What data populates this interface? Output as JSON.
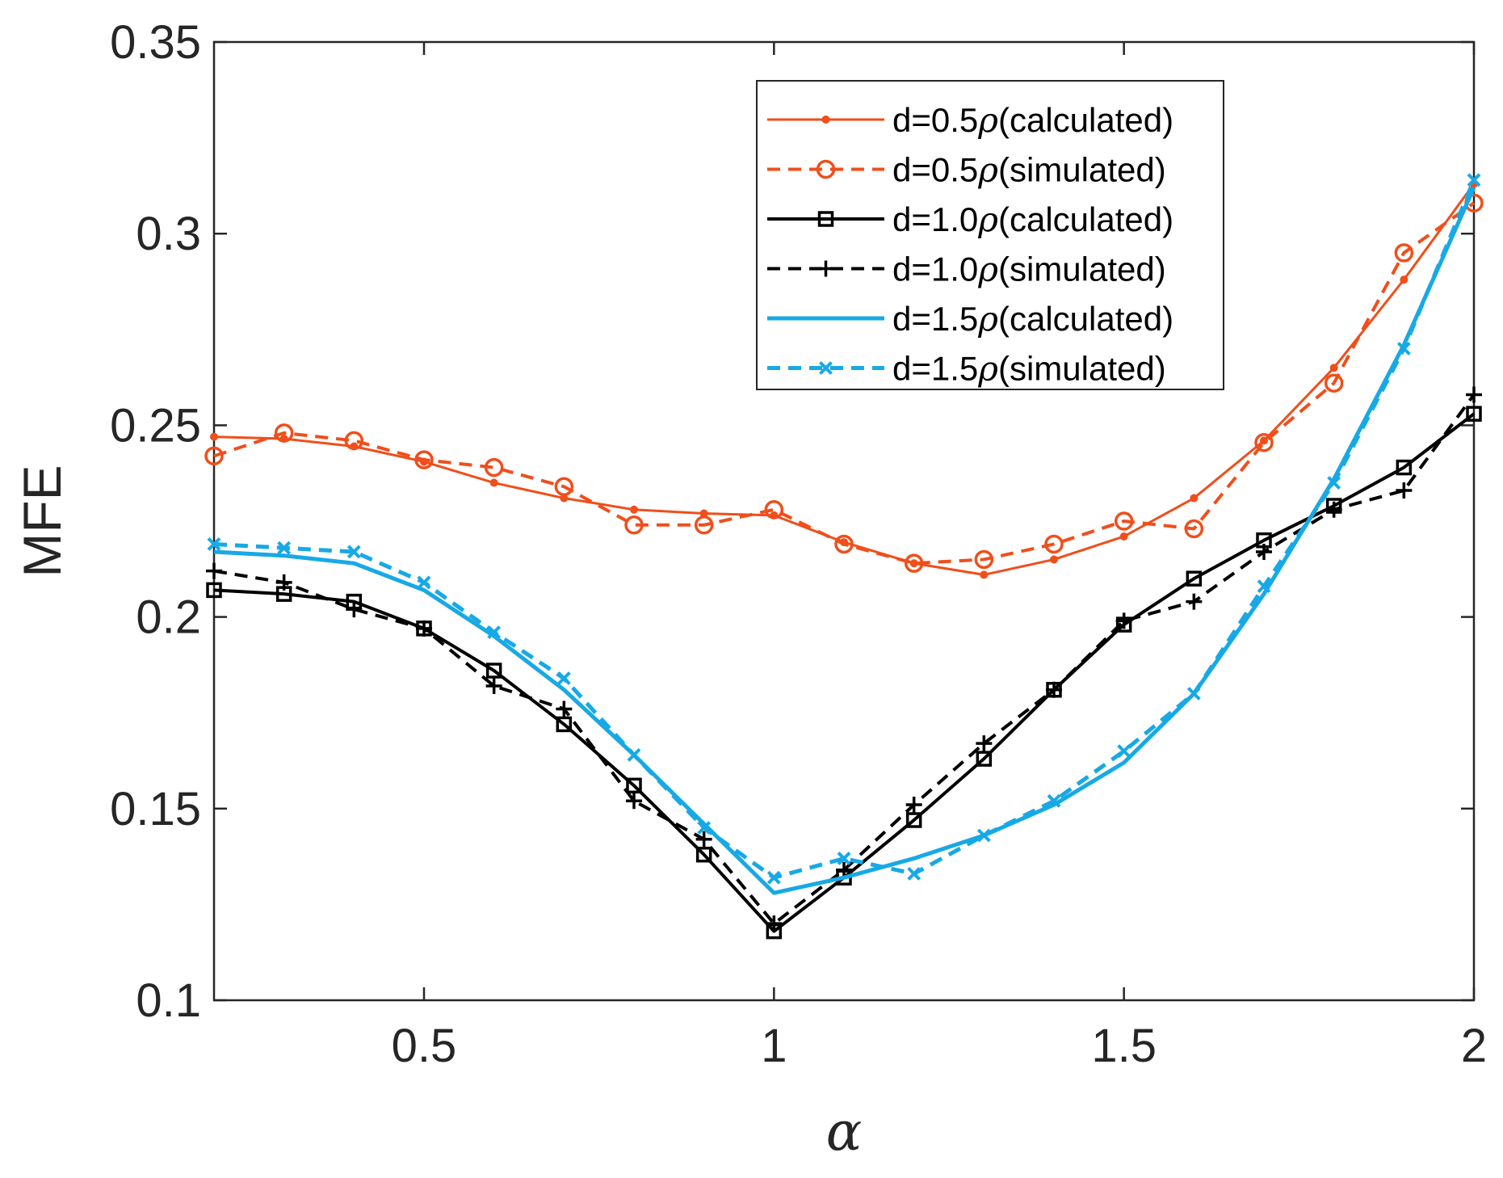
{
  "chart_data": {
    "type": "line",
    "title": "",
    "xlabel": "α",
    "ylabel": "MFE",
    "xlim": [
      0.2,
      2.0
    ],
    "ylim": [
      0.1,
      0.35
    ],
    "grid": false,
    "legend_position": "top-right",
    "x_ticks": [
      0.5,
      1.0,
      1.5,
      2.0
    ],
    "x_tick_labels": [
      "0.5",
      "1",
      "1.5",
      "2"
    ],
    "y_ticks": [
      0.1,
      0.15,
      0.2,
      0.25,
      0.3,
      0.35
    ],
    "y_tick_labels": [
      "0.1",
      "0.15",
      "0.2",
      "0.25",
      "0.3",
      "0.35"
    ],
    "x": [
      0.2,
      0.3,
      0.4,
      0.5,
      0.6,
      0.7,
      0.8,
      0.9,
      1.0,
      1.1,
      1.2,
      1.3,
      1.4,
      1.5,
      1.6,
      1.7,
      1.8,
      1.9,
      2.0
    ],
    "series": [
      {
        "name": "d=0.5ρ(calculated)",
        "label_prefix": "d=0.5",
        "label_symbol": "ρ",
        "label_suffix": "(calculated)",
        "color": "#f04e1b",
        "line_style": "solid",
        "line_width": 3,
        "marker": "dot",
        "values": [
          0.247,
          0.2465,
          0.2445,
          0.2405,
          0.235,
          0.231,
          0.228,
          0.227,
          0.2265,
          0.2195,
          0.214,
          0.211,
          0.215,
          0.221,
          0.231,
          0.246,
          0.265,
          0.288,
          0.313
        ]
      },
      {
        "name": "d=0.5ρ(simulated)",
        "label_prefix": "d=0.5",
        "label_symbol": "ρ",
        "label_suffix": "(simulated)",
        "color": "#f04e1b",
        "line_style": "dashed",
        "line_width": 4,
        "marker": "circle",
        "values": [
          0.242,
          0.248,
          0.246,
          0.241,
          0.239,
          0.234,
          0.224,
          0.224,
          0.228,
          0.219,
          0.214,
          0.215,
          0.219,
          0.225,
          0.223,
          0.2455,
          0.261,
          0.295,
          0.308
        ]
      },
      {
        "name": "d=1.0ρ(calculated)",
        "label_prefix": "d=1.0",
        "label_symbol": "ρ",
        "label_suffix": "(calculated)",
        "color": "#000000",
        "line_style": "solid",
        "line_width": 4,
        "marker": "square",
        "values": [
          0.207,
          0.206,
          0.204,
          0.197,
          0.186,
          0.172,
          0.156,
          0.138,
          0.118,
          0.132,
          0.147,
          0.163,
          0.181,
          0.198,
          0.21,
          0.22,
          0.229,
          0.239,
          0.253
        ]
      },
      {
        "name": "d=1.0ρ(simulated)",
        "label_prefix": "d=1.0",
        "label_symbol": "ρ",
        "label_suffix": "(simulated)",
        "color": "#000000",
        "line_style": "dashed",
        "line_width": 4,
        "marker": "plus",
        "values": [
          0.212,
          0.209,
          0.202,
          0.197,
          0.182,
          0.176,
          0.152,
          0.142,
          0.12,
          0.134,
          0.151,
          0.167,
          0.181,
          0.199,
          0.204,
          0.217,
          0.228,
          0.233,
          0.258
        ]
      },
      {
        "name": "d=1.5ρ(calculated)",
        "label_prefix": "d=1.5",
        "label_symbol": "ρ",
        "label_suffix": "(calculated)",
        "color": "#17a9e6",
        "line_style": "solid",
        "line_width": 5,
        "marker": "none",
        "values": [
          0.217,
          0.216,
          0.214,
          0.207,
          0.195,
          0.181,
          0.164,
          0.146,
          0.128,
          0.132,
          0.137,
          0.143,
          0.151,
          0.162,
          0.18,
          0.206,
          0.236,
          0.271,
          0.312
        ]
      },
      {
        "name": "d=1.5ρ(simulated)",
        "label_prefix": "d=1.5",
        "label_symbol": "ρ",
        "label_suffix": "(simulated)",
        "color": "#17a9e6",
        "line_style": "dashed",
        "line_width": 5,
        "marker": "x",
        "values": [
          0.219,
          0.218,
          0.217,
          0.209,
          0.196,
          0.184,
          0.164,
          0.145,
          0.132,
          0.137,
          0.133,
          0.143,
          0.152,
          0.165,
          0.18,
          0.208,
          0.235,
          0.27,
          0.314
        ]
      }
    ]
  }
}
